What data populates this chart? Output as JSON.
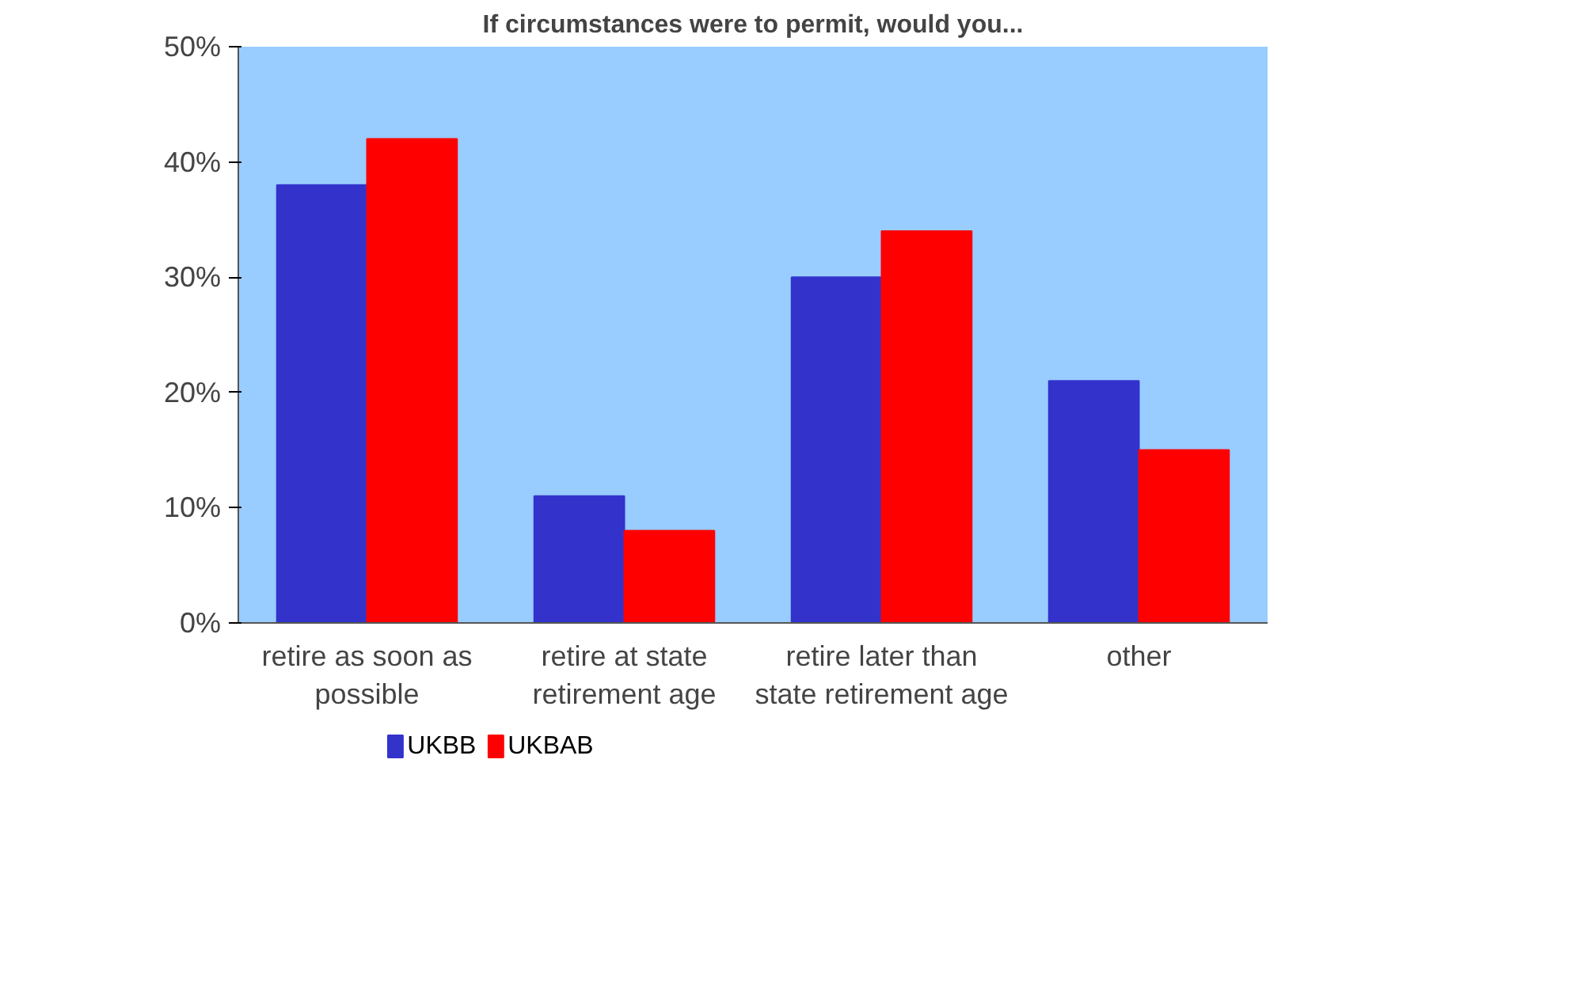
{
  "chart_data": {
    "type": "bar",
    "title": "If circumstances were to permit, would you...",
    "categories": [
      "retire as soon as possible",
      "retire at state retirement age",
      "retire later than state retirement age",
      "other"
    ],
    "series": [
      {
        "name": "UKBB",
        "color": "#3333cc",
        "values": [
          38,
          11,
          30,
          21
        ]
      },
      {
        "name": "UKBAB",
        "color": "#ff0000",
        "values": [
          42,
          8,
          34,
          15
        ]
      }
    ],
    "ylim": [
      0,
      50
    ],
    "yticks": [
      {
        "value": 0,
        "label": "0%"
      },
      {
        "value": 10,
        "label": "10%"
      },
      {
        "value": 20,
        "label": "20%"
      },
      {
        "value": 30,
        "label": "30%"
      },
      {
        "value": 40,
        "label": "40%"
      },
      {
        "value": 50,
        "label": "50%"
      }
    ],
    "grid": false,
    "legend": "bottom left"
  }
}
